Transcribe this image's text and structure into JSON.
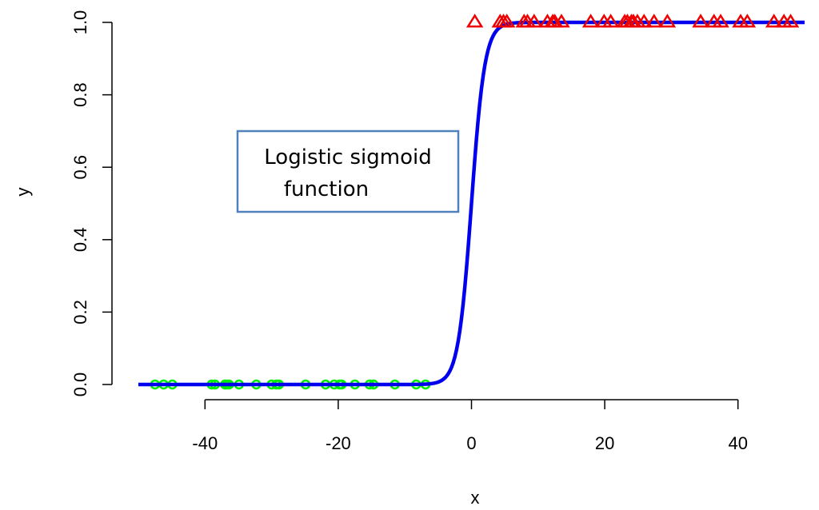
{
  "chart_data": {
    "type": "scatter",
    "xlabel": "x",
    "ylabel": "y",
    "xlim": [
      -50,
      50
    ],
    "ylim": [
      0,
      1
    ],
    "xticks": [
      -40,
      -20,
      0,
      20,
      40
    ],
    "yticks": [
      0.0,
      0.2,
      0.4,
      0.6,
      0.8,
      1.0
    ],
    "ytick_labels": [
      "0.0",
      "0.2",
      "0.4",
      "0.6",
      "0.8",
      "1.0"
    ],
    "grid": false,
    "annotation": {
      "lines": [
        "Logistic sigmoid",
        "function"
      ],
      "border_color": "#4f81bd"
    },
    "curve": {
      "kind": "logistic",
      "x_range": [
        -50,
        50
      ],
      "color": "#0000ee",
      "steepness": 1.0,
      "midpoint": 0
    },
    "series": [
      {
        "marker": "circle",
        "color": "#00ee00",
        "y": 0,
        "x": [
          -47.5,
          -46.2,
          -44.9,
          -39.0,
          -38.5,
          -37.0,
          -36.7,
          -36.4,
          -34.9,
          -32.3,
          -30.0,
          -29.3,
          -28.9,
          -24.9,
          -21.9,
          -20.6,
          -19.8,
          -19.5,
          -17.5,
          -15.3,
          -14.7,
          -11.5,
          -8.3,
          -6.9
        ]
      },
      {
        "marker": "triangle",
        "color": "#ee0000",
        "y": 1,
        "x": [
          0.5,
          4.3,
          4.8,
          5.3,
          7.9,
          8.4,
          9.4,
          11.4,
          12.2,
          12.5,
          13.5,
          17.9,
          19.9,
          20.9,
          23.0,
          23.4,
          24.0,
          24.3,
          24.9,
          25.9,
          27.4,
          29.4,
          34.4,
          36.4,
          37.4,
          40.4,
          41.4,
          45.4,
          46.9,
          47.9
        ]
      }
    ]
  }
}
